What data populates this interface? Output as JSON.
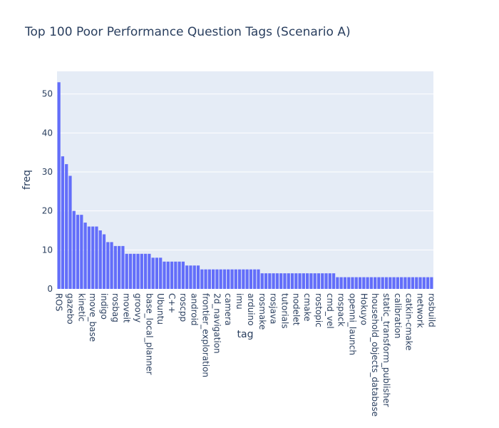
{
  "chart_data": {
    "type": "bar",
    "title": "Top 100 Poor Performance Question Tags (Scenario A)",
    "x_label": "tag",
    "y_label": "freq",
    "color": "#636efa",
    "grid": true,
    "ylim": [
      0,
      55.8
    ],
    "yticks": [
      0,
      10,
      20,
      30,
      40,
      50
    ],
    "categories": [
      "ROS",
      null,
      null,
      "gazebo",
      null,
      null,
      "kinetic",
      null,
      null,
      "move_base",
      null,
      null,
      "indigo",
      null,
      null,
      "rosbag",
      null,
      null,
      "moveit",
      null,
      null,
      "groovy",
      null,
      null,
      "base_local_planner",
      null,
      null,
      "Ubuntu",
      null,
      null,
      "C++",
      null,
      null,
      "roscpp",
      null,
      null,
      "android",
      null,
      null,
      "frontier_exploration",
      null,
      null,
      "2d_navigation",
      null,
      null,
      "camera",
      null,
      null,
      "imu",
      null,
      null,
      "arduino",
      null,
      null,
      "rosmake",
      null,
      null,
      "rosjava",
      null,
      null,
      "tutorials",
      null,
      null,
      "nodelet",
      null,
      null,
      "cmake",
      null,
      null,
      "rostopic",
      null,
      null,
      "cmd_vel",
      null,
      null,
      "rospack",
      null,
      null,
      "openni_launch",
      null,
      null,
      "Hokuyo",
      null,
      null,
      "household_objects_database",
      null,
      null,
      "static_transform_publisher",
      null,
      null,
      "calibration",
      null,
      null,
      "catkin-cmake",
      null,
      null,
      "network",
      null,
      null,
      "rosbuild"
    ],
    "values": [
      53,
      34,
      32,
      29,
      20,
      19,
      19,
      17,
      16,
      16,
      16,
      15,
      14,
      12,
      12,
      11,
      11,
      11,
      9,
      9,
      9,
      9,
      9,
      9,
      9,
      8,
      8,
      8,
      7,
      7,
      7,
      7,
      7,
      7,
      6,
      6,
      6,
      6,
      5,
      5,
      5,
      5,
      5,
      5,
      5,
      5,
      5,
      5,
      5,
      5,
      5,
      5,
      5,
      5,
      4,
      4,
      4,
      4,
      4,
      4,
      4,
      4,
      4,
      4,
      4,
      4,
      4,
      4,
      4,
      4,
      4,
      4,
      4,
      4,
      3,
      3,
      3,
      3,
      3,
      3,
      3,
      3,
      3,
      3,
      3,
      3,
      3,
      3,
      3,
      3,
      3,
      3,
      3,
      3,
      3,
      3,
      3,
      3,
      3,
      3
    ]
  }
}
